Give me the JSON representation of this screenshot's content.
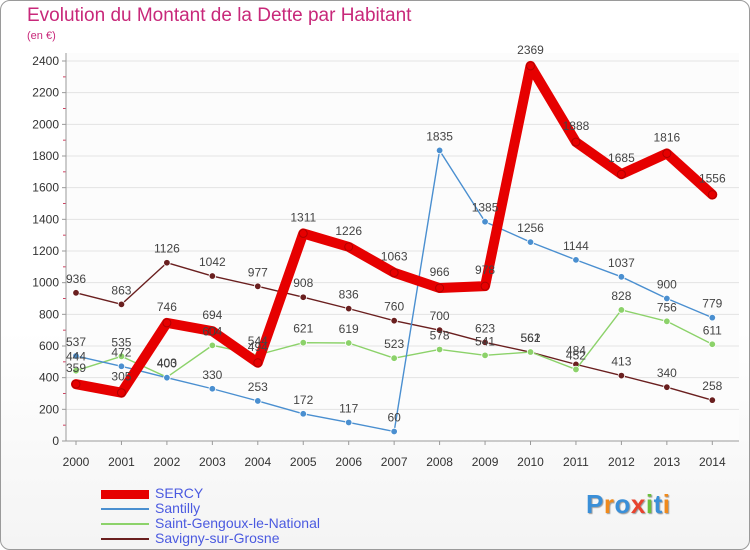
{
  "chart_data": {
    "type": "line",
    "title": "Evolution du Montant de la Dette par Habitant",
    "unit_label": "(en €)",
    "x": [
      "2000",
      "2001",
      "2002",
      "2003",
      "2004",
      "2005",
      "2006",
      "2007",
      "2008",
      "2009",
      "2010",
      "2011",
      "2012",
      "2013",
      "2014"
    ],
    "ylim": [
      0,
      2400
    ],
    "yticks": [
      "0",
      "200",
      "400",
      "600",
      "800",
      "1000",
      "1200",
      "1400",
      "1600",
      "1800",
      "2000",
      "2200",
      "2400"
    ],
    "grid": "horizontal",
    "legend_position": "bottom-left",
    "series": [
      {
        "name": "SERCY",
        "color": "#e60000",
        "values": [
          359,
          305,
          746,
          694,
          494,
          1311,
          1226,
          1063,
          966,
          978,
          2369,
          1888,
          1685,
          1816,
          1556
        ],
        "labels": [
          "359",
          "305",
          "746",
          "694",
          "494",
          "1311",
          "1226",
          "1063",
          "966",
          "978",
          "2369",
          "1888",
          "1685",
          "1816",
          "1556"
        ]
      },
      {
        "name": "Santilly",
        "color": "#4a8fd0",
        "values": [
          537,
          472,
          400,
          330,
          253,
          172,
          117,
          60,
          1835,
          1385,
          1256,
          1144,
          1037,
          900,
          779
        ],
        "labels": [
          "537",
          "472",
          "400",
          "330",
          "253",
          "172",
          "117",
          "60",
          "1835",
          "1385",
          "1256",
          "1144",
          "1037",
          "900",
          "779"
        ]
      },
      {
        "name": "Saint-Gengoux-le-National",
        "color": "#8cd26a",
        "values": [
          444,
          535,
          403,
          604,
          544,
          621,
          619,
          523,
          578,
          541,
          562,
          452,
          828,
          756,
          611
        ],
        "labels": [
          "444",
          "535",
          "403",
          "604",
          "544",
          "621",
          "619",
          "523",
          "578",
          "541",
          "562",
          "452",
          "828",
          "756",
          "611"
        ]
      },
      {
        "name": "Savigny-sur-Grosne",
        "color": "#6a1f1f",
        "values": [
          936,
          863,
          1126,
          1042,
          977,
          908,
          836,
          760,
          700,
          623,
          561,
          484,
          413,
          340,
          258
        ],
        "labels": [
          "936",
          "863",
          "1126",
          "1042",
          "977",
          "908",
          "836",
          "760",
          "700",
          "623",
          "561",
          "484",
          "413",
          "340",
          "258"
        ]
      }
    ]
  },
  "logo": {
    "text": "Proxiti",
    "letters": [
      "P",
      "r",
      "o",
      "x",
      "i",
      "t",
      "i"
    ],
    "colors": [
      "#3a8fd8",
      "#f08a1c",
      "#3a8fd8",
      "#e8432e",
      "#6cbf3c",
      "#3a8fd8",
      "#f08a1c"
    ]
  }
}
